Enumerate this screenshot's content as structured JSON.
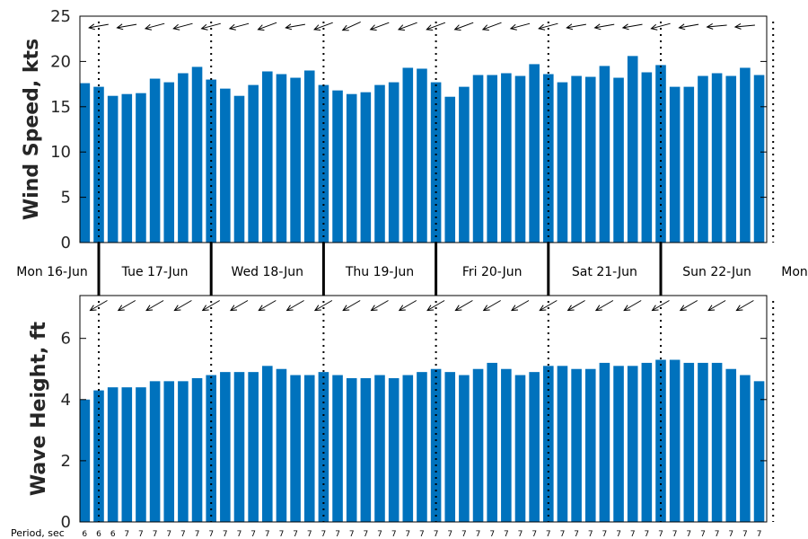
{
  "chart_data": {
    "type": "bar",
    "bar_color": "#0072BD",
    "days": [
      "Mon 16-Jun",
      "Tue 17-Jun",
      "Wed 18-Jun",
      "Thu 19-Jun",
      "Fri 20-Jun",
      "Sat 21-Jun",
      "Sun 22-Jun",
      "Mon"
    ],
    "wind_speed": {
      "ylabel": "Wind Speed, kts",
      "ylim": [
        0,
        25
      ],
      "yticks": [
        0,
        5,
        10,
        15,
        20,
        25
      ],
      "values": [
        17.6,
        17.2,
        16.2,
        16.4,
        16.5,
        18.1,
        17.7,
        18.7,
        19.4,
        18.0,
        17.0,
        16.2,
        17.4,
        18.9,
        18.6,
        18.2,
        19.0,
        17.4,
        16.8,
        16.4,
        16.6,
        17.4,
        17.7,
        19.3,
        19.2,
        17.7,
        16.1,
        17.2,
        18.5,
        18.5,
        18.7,
        18.4,
        19.7,
        18.6,
        17.7,
        18.4,
        18.3,
        19.5,
        18.2,
        20.6,
        18.8,
        19.6,
        17.2,
        17.2,
        18.4,
        18.7,
        18.4,
        19.3,
        18.5
      ],
      "direction_deg": [
        80,
        80,
        75,
        80,
        80,
        75,
        80,
        75,
        80,
        75,
        70,
        75,
        70,
        70,
        75,
        80,
        80,
        70,
        65,
        65,
        65,
        70,
        70,
        70,
        75,
        70,
        65,
        70,
        70,
        70,
        70,
        75,
        70,
        75,
        75,
        80,
        75,
        80,
        75,
        80,
        80,
        75,
        80,
        80,
        80,
        85,
        80,
        85,
        85
      ]
    },
    "wave_height": {
      "ylabel": "Wave Height, ft",
      "ylim": [
        0,
        7.4
      ],
      "yticks": [
        0,
        2,
        4,
        6
      ],
      "values": [
        4.0,
        4.3,
        4.4,
        4.4,
        4.4,
        4.6,
        4.6,
        4.6,
        4.7,
        4.8,
        4.9,
        4.9,
        4.9,
        5.1,
        5.0,
        4.8,
        4.8,
        4.9,
        4.8,
        4.7,
        4.7,
        4.8,
        4.7,
        4.8,
        4.9,
        5.0,
        4.9,
        4.8,
        5.0,
        5.2,
        5.0,
        4.8,
        4.9,
        5.1,
        5.1,
        5.0,
        5.0,
        5.2,
        5.1,
        5.1,
        5.2,
        5.3,
        5.3,
        5.2,
        5.2,
        5.2,
        5.0,
        4.8,
        4.6
      ],
      "direction_deg": [
        60,
        60,
        60,
        60,
        60,
        60,
        60,
        60,
        60,
        60,
        60,
        60,
        60,
        60,
        60,
        60,
        60,
        60,
        60,
        60,
        60,
        60,
        60,
        60,
        60,
        60,
        60,
        60,
        60,
        60,
        60,
        60,
        60,
        60,
        60,
        60,
        60,
        60,
        60,
        60,
        60,
        60,
        60,
        60,
        60,
        60,
        60,
        60,
        60
      ]
    },
    "period": {
      "label": "Period, sec",
      "values": [
        6,
        6,
        6,
        7,
        7,
        7,
        7,
        7,
        7,
        7,
        7,
        7,
        7,
        7,
        7,
        7,
        7,
        7,
        7,
        7,
        7,
        7,
        7,
        7,
        7,
        7,
        7,
        7,
        7,
        7,
        7,
        7,
        7,
        7,
        7,
        7,
        7,
        7,
        7,
        7,
        7,
        7,
        7,
        7,
        7,
        7,
        7,
        7,
        7
      ]
    }
  }
}
